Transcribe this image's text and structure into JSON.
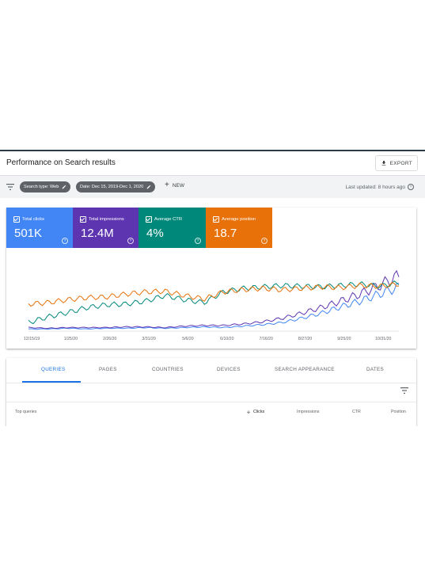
{
  "header": {
    "title": "Performance on Search results",
    "export_label": "EXPORT"
  },
  "filters": {
    "search_type_chip": "Search type: Web",
    "date_chip": "Date: Dec 15, 2019-Dec 1, 2020",
    "new_label": "NEW",
    "last_updated": "Last updated: 8 hours ago"
  },
  "metrics": [
    {
      "label": "Total clicks",
      "value": "501K",
      "color": "#4285f4"
    },
    {
      "label": "Total impressions",
      "value": "12.4M",
      "color": "#5e35b1"
    },
    {
      "label": "Average CTR",
      "value": "4%",
      "color": "#00897b"
    },
    {
      "label": "Average position",
      "value": "18.7",
      "color": "#e8710a"
    }
  ],
  "chart_data": {
    "type": "line",
    "x_tick_labels": [
      "12/15/19",
      "1/25/20",
      "2/26/20",
      "3/31/20",
      "5/6/20",
      "6/10/20",
      "7/16/20",
      "8/27/20",
      "9/25/20",
      "10/31/20"
    ],
    "series": [
      {
        "name": "Total clicks",
        "color": "#4285f4",
        "values": [
          0.03,
          0.03,
          0.04,
          0.03,
          0.04,
          0.04,
          0.05,
          0.04,
          0.05,
          0.06,
          0.05,
          0.07,
          0.09,
          0.12,
          0.18,
          0.25,
          0.34,
          0.42,
          0.52,
          0.62
        ]
      },
      {
        "name": "Total impressions",
        "color": "#5e35b1",
        "values": [
          0.05,
          0.04,
          0.05,
          0.05,
          0.05,
          0.06,
          0.06,
          0.05,
          0.07,
          0.08,
          0.08,
          0.1,
          0.13,
          0.18,
          0.25,
          0.33,
          0.42,
          0.52,
          0.64,
          0.78
        ]
      },
      {
        "name": "Average CTR",
        "color": "#00897b",
        "values": [
          0.12,
          0.2,
          0.26,
          0.33,
          0.37,
          0.38,
          0.42,
          0.5,
          0.44,
          0.4,
          0.55,
          0.6,
          0.62,
          0.64,
          0.63,
          0.62,
          0.64,
          0.66,
          0.63,
          0.68
        ]
      },
      {
        "name": "Average position",
        "color": "#e8710a",
        "values": [
          0.38,
          0.4,
          0.44,
          0.47,
          0.48,
          0.52,
          0.55,
          0.56,
          0.5,
          0.45,
          0.55,
          0.58,
          0.6,
          0.58,
          0.6,
          0.62,
          0.61,
          0.64,
          0.63,
          0.66
        ]
      }
    ]
  },
  "tabs": [
    "QUERIES",
    "PAGES",
    "COUNTRIES",
    "DEVICES",
    "SEARCH APPEARANCE",
    "DATES"
  ],
  "table": {
    "headers": {
      "query": "Top queries",
      "clicks": "Clicks",
      "impressions": "Impressions",
      "ctr": "CTR",
      "position": "Position"
    }
  }
}
